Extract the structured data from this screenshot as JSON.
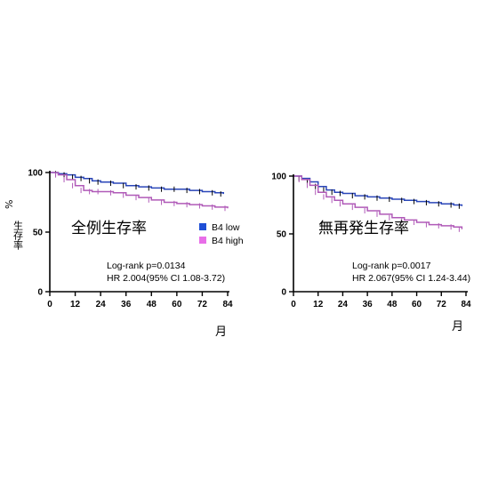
{
  "figure": {
    "y_axis_label": "生存率",
    "y_axis_unit": "%",
    "x_axis_unit": "月"
  },
  "legend": {
    "items": [
      {
        "label": "B4 low",
        "color": "#1f4fd6"
      },
      {
        "label": "B4 high",
        "color": "#e86ee8"
      }
    ]
  },
  "colors": {
    "low": "#2a46b8",
    "high": "#b05ab8",
    "axis": "#000000"
  },
  "chart_data": [
    {
      "type": "line",
      "title": "全例生存率",
      "x_ticks": [
        0,
        12,
        24,
        36,
        48,
        60,
        72,
        84
      ],
      "y_ticks": [
        0,
        50,
        100
      ],
      "xlim": [
        0,
        84
      ],
      "ylim": [
        0,
        100
      ],
      "annotation": {
        "line1": "Log-rank p=0.0134",
        "line2": "HR 2.004(95% CI 1.08-3.72)"
      },
      "series": [
        {
          "name": "B4 low",
          "x": [
            0,
            4,
            8,
            12,
            16,
            20,
            24,
            30,
            36,
            42,
            48,
            54,
            60,
            66,
            72,
            78,
            82
          ],
          "y": [
            100,
            99,
            98,
            96,
            95,
            93,
            92,
            91,
            89,
            88,
            87,
            86,
            86,
            85,
            84,
            83,
            82
          ]
        },
        {
          "name": "B4 high",
          "x": [
            0,
            4,
            8,
            12,
            16,
            20,
            24,
            30,
            36,
            42,
            48,
            54,
            60,
            66,
            72,
            78,
            84
          ],
          "y": [
            100,
            98,
            94,
            89,
            85,
            84,
            84,
            83,
            81,
            79,
            77,
            75,
            74,
            73,
            72,
            71,
            70
          ]
        }
      ]
    },
    {
      "type": "line",
      "title": "無再発生存率",
      "x_ticks": [
        0,
        12,
        24,
        36,
        48,
        60,
        72,
        84
      ],
      "y_ticks": [
        0,
        50,
        100
      ],
      "xlim": [
        0,
        84
      ],
      "ylim": [
        0,
        100
      ],
      "annotation": {
        "line1": "Log-rank p=0.0017",
        "line2": "HR 2.067(95% CI 1.24-3.44)"
      },
      "series": [
        {
          "name": "B4 low",
          "x": [
            0,
            4,
            8,
            12,
            16,
            20,
            24,
            30,
            36,
            42,
            48,
            54,
            60,
            66,
            72,
            78,
            82
          ],
          "y": [
            100,
            98,
            95,
            91,
            88,
            86,
            85,
            83,
            82,
            81,
            80,
            79,
            78,
            77,
            76,
            75,
            74
          ]
        },
        {
          "name": "B4 high",
          "x": [
            0,
            4,
            8,
            12,
            16,
            20,
            24,
            30,
            36,
            42,
            48,
            54,
            60,
            66,
            72,
            78,
            82
          ],
          "y": [
            100,
            97,
            92,
            86,
            82,
            79,
            76,
            73,
            70,
            67,
            64,
            62,
            60,
            58,
            57,
            56,
            54
          ]
        }
      ]
    }
  ]
}
